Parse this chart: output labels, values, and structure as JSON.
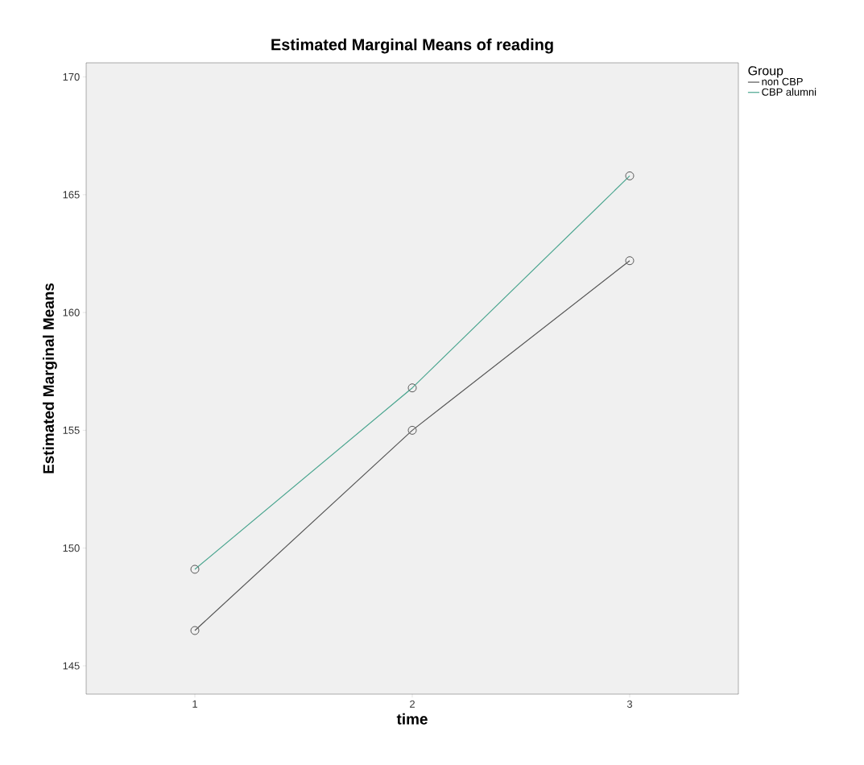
{
  "chart_data": {
    "type": "line",
    "title": "Estimated Marginal Means of reading",
    "xlabel": "time",
    "ylabel": "Estimated Marginal Means",
    "legend_title": "Group",
    "categories": [
      "1",
      "2",
      "3"
    ],
    "series": [
      {
        "name": "non CBP",
        "color": "#555555",
        "values": [
          146.5,
          155.0,
          162.2
        ]
      },
      {
        "name": "CBP alumni",
        "color": "#4aa58f",
        "values": [
          149.1,
          156.8,
          165.8
        ]
      }
    ],
    "ylim": [
      143.8,
      170.6
    ],
    "yticks": [
      145,
      150,
      155,
      160,
      165,
      170
    ],
    "grid": false,
    "legend": "top right",
    "marker": "circle"
  }
}
